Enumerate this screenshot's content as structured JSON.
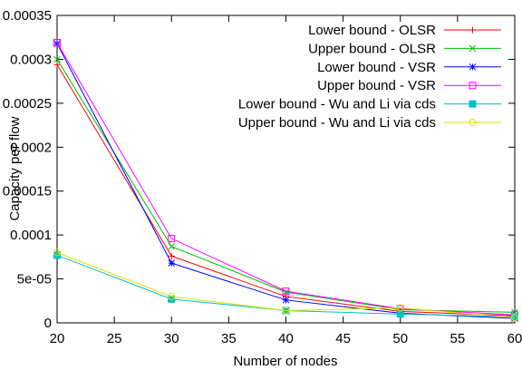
{
  "chart_data": {
    "type": "line",
    "xlabel": "Number of nodes",
    "ylabel": "Capacity per flow",
    "xlim": [
      20,
      60
    ],
    "ylim": [
      0,
      0.00035
    ],
    "x_ticks": [
      20,
      25,
      30,
      35,
      40,
      45,
      50,
      55,
      60
    ],
    "x_tick_labels": [
      "20",
      "25",
      "30",
      "35",
      "40",
      "45",
      "50",
      "55",
      "60"
    ],
    "y_ticks": [
      0,
      5e-05,
      0.0001,
      0.00015,
      0.0002,
      0.00025,
      0.0003,
      0.00035
    ],
    "y_tick_labels": [
      "0",
      "5e-05",
      "0.0001",
      "0.00015",
      "0.0002",
      "0.00025",
      "0.0003",
      "0.00035"
    ],
    "grid": false,
    "legend_position": "top-right",
    "x": [
      20,
      30,
      40,
      50,
      60
    ],
    "series": [
      {
        "name": "Lower bound - OLSR",
        "color": "#ff0000",
        "marker": "plus",
        "values": [
          0.000294,
          7.6e-05,
          3e-05,
          1.3e-05,
          8e-06
        ]
      },
      {
        "name": "Upper bound - OLSR",
        "color": "#00c000",
        "marker": "cross",
        "values": [
          0.0003,
          8.7e-05,
          3.5e-05,
          1.5e-05,
          1.2e-05
        ]
      },
      {
        "name": "Lower bound - VSR",
        "color": "#0000ff",
        "marker": "star",
        "values": [
          0.000318,
          6.8e-05,
          2.6e-05,
          1.1e-05,
          5e-06
        ]
      },
      {
        "name": "Upper bound - VSR",
        "color": "#ff00ff",
        "marker": "open-square",
        "values": [
          0.000319,
          9.6e-05,
          3.6e-05,
          1.6e-05,
          9e-06
        ]
      },
      {
        "name": "Lower bound - Wu and Li via cds",
        "color": "#00c0c0",
        "marker": "filled-square",
        "values": [
          7.7e-05,
          2.7e-05,
          1.4e-05,
          1e-05,
          7e-06
        ]
      },
      {
        "name": "Upper bound - Wu and Li via cds",
        "color": "#e0e000",
        "marker": "open-circle",
        "values": [
          8e-05,
          3e-05,
          1.4e-05,
          1.7e-05,
          6e-06
        ]
      }
    ]
  }
}
